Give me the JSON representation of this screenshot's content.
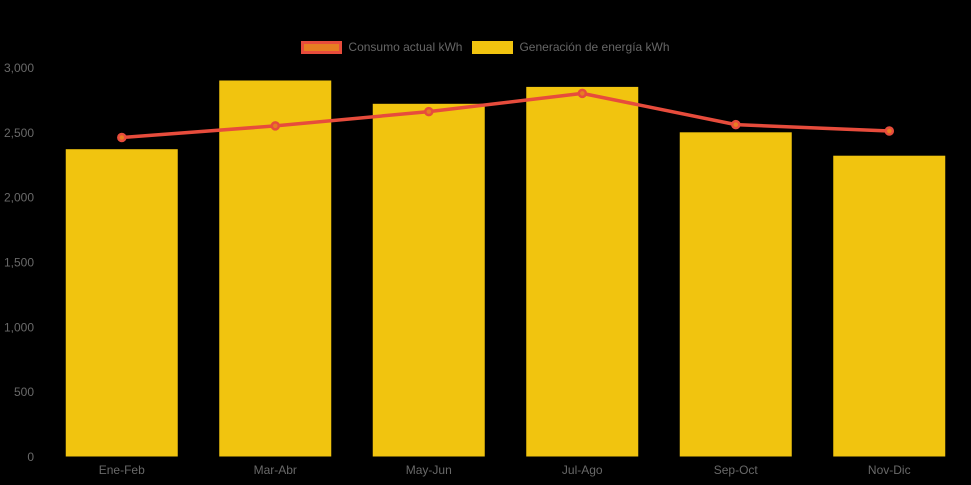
{
  "colors": {
    "background": "#000000",
    "axis_text": "#696969",
    "legend_text": "#666666",
    "bar_yellow": "#f1c40f",
    "line_red": "#e74c3c",
    "point_orange": "#e67e22"
  },
  "legend": {
    "items": [
      {
        "label": "Consumo actual kWh"
      },
      {
        "label": "Generación de energía kWh"
      }
    ]
  },
  "chart_data": {
    "type": "bar",
    "subtype": "combo-bar-line",
    "categories": [
      "Ene-Feb",
      "Mar-Abr",
      "May-Jun",
      "Jul-Ago",
      "Sep-Oct",
      "Nov-Dic"
    ],
    "series": [
      {
        "name": "Consumo actual kWh",
        "type": "line",
        "color": "#e74c3c",
        "point_color": "#e67e22",
        "values": [
          2460,
          2550,
          2660,
          2800,
          2560,
          2510
        ]
      },
      {
        "name": "Generación de energía kWh",
        "type": "bar",
        "color": "#f1c40f",
        "values": [
          2370,
          2900,
          2720,
          2850,
          2500,
          2320
        ]
      }
    ],
    "ylim": [
      0,
      3000
    ],
    "ytick_step": 500,
    "ytick_labels": [
      "0",
      "500",
      "1,000",
      "1,500",
      "2,000",
      "2,500",
      "3,000"
    ],
    "grid": false,
    "legend_position": "top"
  }
}
